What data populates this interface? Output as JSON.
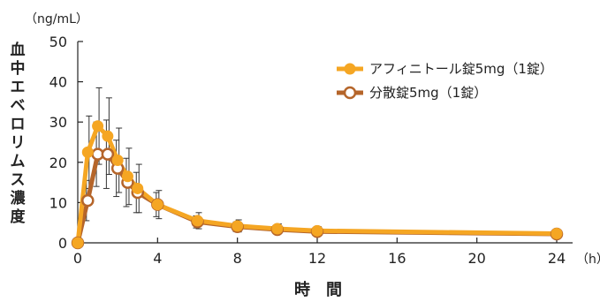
{
  "chart_data": {
    "type": "line",
    "ylabel": "血中エベロリムス濃度",
    "ylabel_unit": "（ng/mL）",
    "xlabel": "時　間",
    "xlabel_unit": "（h）",
    "xlim": [
      0,
      24
    ],
    "ylim": [
      0,
      50
    ],
    "x_ticks": [
      0,
      4,
      8,
      12,
      16,
      20,
      24
    ],
    "y_ticks": [
      0,
      10,
      20,
      30,
      40,
      50
    ],
    "legend_position": "top-right",
    "series": [
      {
        "name": "アフィニトール錠5mg（1錠）",
        "color": "#f5a623",
        "marker": "filled-circle",
        "x": [
          0,
          0.5,
          1,
          1.5,
          2,
          2.5,
          3,
          4,
          6,
          8,
          10,
          12,
          24
        ],
        "y": [
          0,
          22.5,
          29,
          26.5,
          20.5,
          16.5,
          13.5,
          9.5,
          5.5,
          4.2,
          3.5,
          3.0,
          2.3
        ],
        "err": [
          0,
          9,
          9.5,
          9.5,
          8,
          7,
          6,
          3.5,
          2,
          1.5,
          1.2,
          1.0,
          0.8
        ]
      },
      {
        "name": "分散錠5mg（1錠）",
        "color": "#b5652a",
        "marker": "open-circle",
        "x": [
          0,
          0.5,
          1,
          1.5,
          2,
          2.5,
          3,
          4,
          6,
          8,
          10,
          12,
          24
        ],
        "y": [
          0,
          10.5,
          22,
          22,
          18.5,
          15,
          12.5,
          9.5,
          5.2,
          4.0,
          3.3,
          2.8,
          2.2
        ],
        "err": [
          0,
          5,
          8,
          8.5,
          7,
          6,
          5,
          3,
          1.5,
          1.2,
          1.0,
          0.8,
          0.6
        ]
      }
    ]
  }
}
